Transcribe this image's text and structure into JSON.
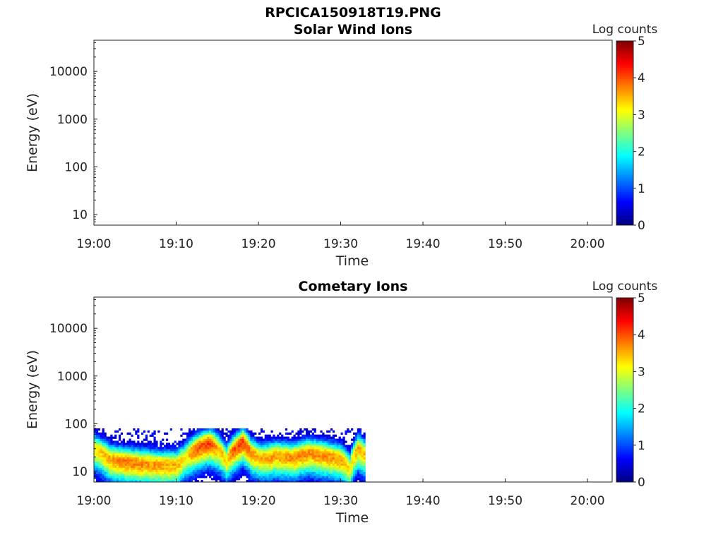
{
  "figure_title": "RPCICA150918T19.PNG",
  "colormap": [
    "#00007f",
    "#0000ff",
    "#007fff",
    "#00ffff",
    "#7fff7f",
    "#ffff00",
    "#ff7f00",
    "#ff0000",
    "#7f0000"
  ],
  "chart_data": [
    {
      "type": "heatmap",
      "title": "Solar Wind Ions",
      "xlabel": "Time",
      "ylabel": "Energy (eV)",
      "x_ticks": [
        "19:00",
        "19:10",
        "19:20",
        "19:30",
        "19:40",
        "19:50",
        "20:00"
      ],
      "x_range": [
        "19:00",
        "20:03"
      ],
      "y_scale": "log",
      "y_range": [
        6,
        45000
      ],
      "y_ticks": [
        "10",
        "100",
        "1000",
        "10000"
      ],
      "colorbar_label": "Log counts",
      "colorbar_ticks": [
        "0",
        "1",
        "2",
        "3",
        "4",
        "5"
      ],
      "colorbar_range": [
        0,
        5
      ],
      "data_time_range": null,
      "data": []
    },
    {
      "type": "heatmap",
      "title": "Cometary Ions",
      "xlabel": "Time",
      "ylabel": "Energy (eV)",
      "x_ticks": [
        "19:00",
        "19:10",
        "19:20",
        "19:30",
        "19:40",
        "19:50",
        "20:00"
      ],
      "x_range": [
        "19:00",
        "20:03"
      ],
      "y_scale": "log",
      "y_range": [
        6,
        45000
      ],
      "y_ticks": [
        "10",
        "100",
        "1000",
        "10000"
      ],
      "colorbar_label": "Log counts",
      "colorbar_ticks": [
        "0",
        "1",
        "2",
        "3",
        "4",
        "5"
      ],
      "colorbar_range": [
        0,
        5
      ],
      "data_time_range": [
        "19:00",
        "19:33"
      ],
      "data_energy_max_eV": 80,
      "peak_energy_profile": {
        "time_min": [
          0,
          2,
          4,
          6,
          8,
          10,
          11,
          12,
          13,
          14,
          15,
          16,
          17,
          18,
          19,
          20,
          21,
          22,
          24,
          26,
          28,
          30,
          31,
          32,
          33
        ],
        "peak_energy_eV": [
          30,
          18,
          16,
          15,
          14,
          14,
          20,
          28,
          35,
          40,
          30,
          18,
          30,
          42,
          25,
          20,
          20,
          22,
          20,
          25,
          22,
          18,
          12,
          30,
          22
        ],
        "peak_log_counts": [
          3.2,
          3.6,
          3.8,
          3.7,
          3.6,
          3.5,
          3.2,
          3.8,
          4.0,
          4.1,
          3.5,
          3.3,
          4.0,
          4.1,
          3.6,
          3.5,
          3.6,
          3.6,
          3.7,
          3.7,
          3.7,
          3.6,
          3.2,
          3.5,
          3.4
        ]
      }
    }
  ]
}
